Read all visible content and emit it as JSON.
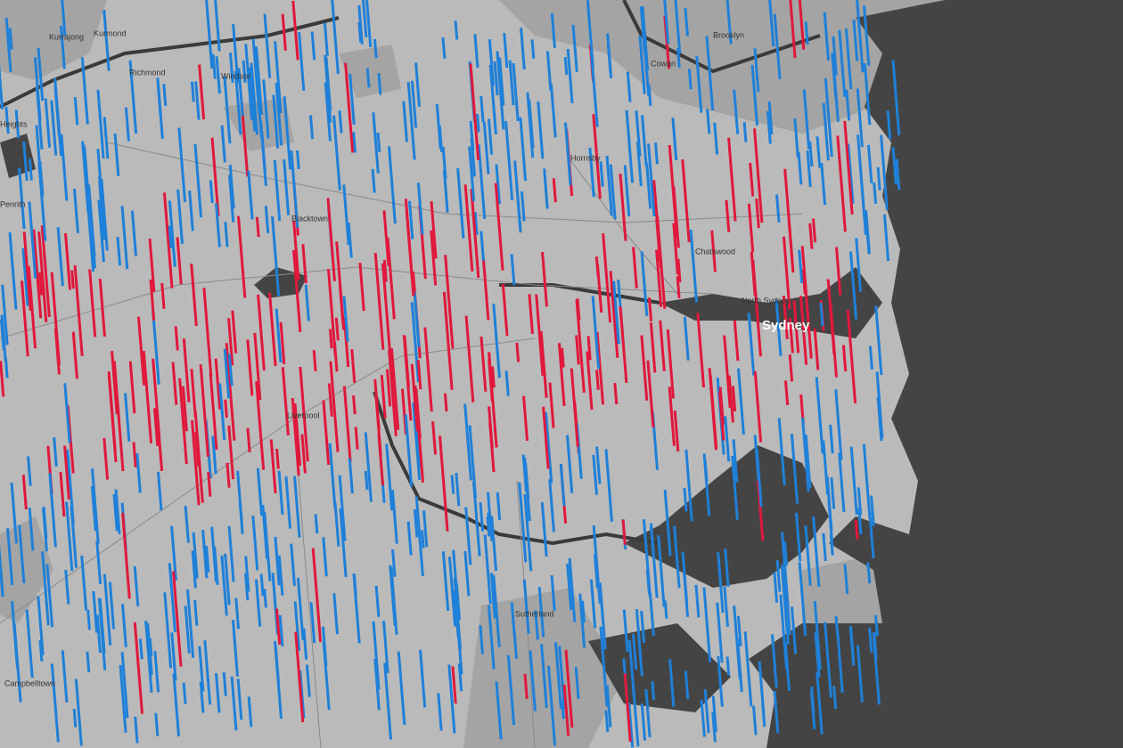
{
  "places": [
    {
      "label": "Kurrajong"
    },
    {
      "label": "Kurmond"
    },
    {
      "label": "Richmond"
    },
    {
      "label": "Windsor"
    },
    {
      "label": "Brooklyn"
    },
    {
      "label": "Cowan"
    },
    {
      "label": "Hornsby"
    },
    {
      "label": "Heights"
    },
    {
      "label": "Penrith"
    },
    {
      "label": "Blacktown"
    },
    {
      "label": "Chatswood"
    },
    {
      "label": "North Sydney"
    },
    {
      "label": "Sydney"
    },
    {
      "label": "Liverpool"
    },
    {
      "label": "Sutherland"
    },
    {
      "label": "Campbelltown"
    }
  ]
}
